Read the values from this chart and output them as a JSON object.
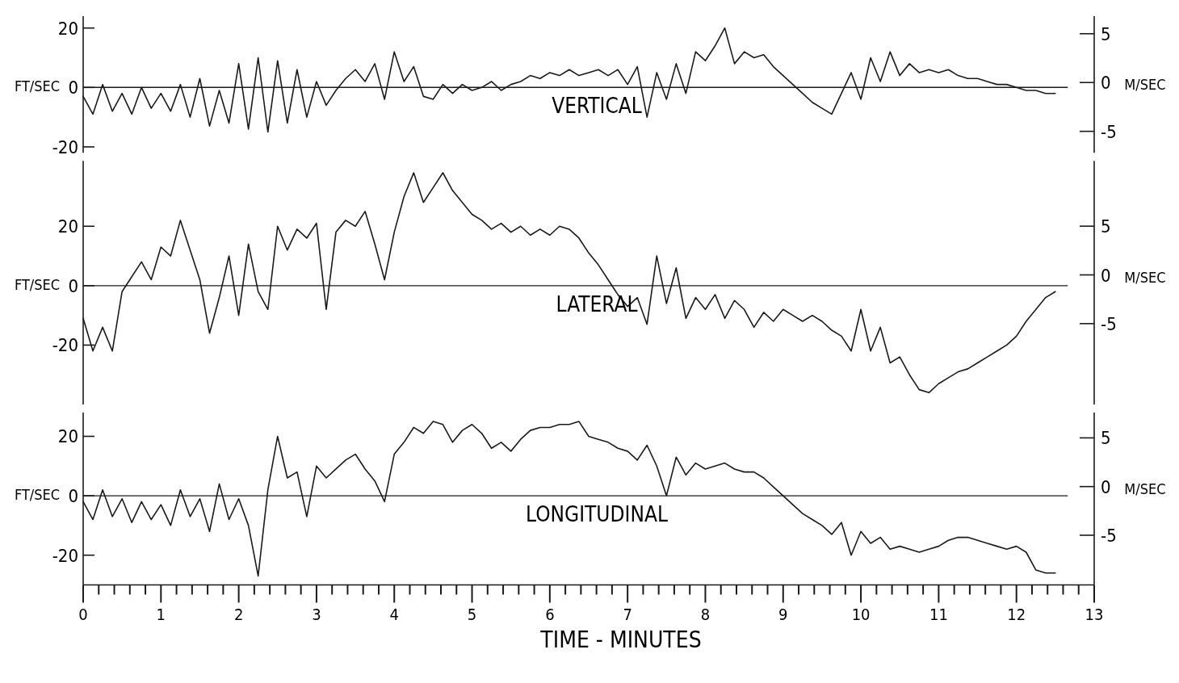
{
  "chart_data": [
    {
      "type": "line",
      "title": "VERTICAL",
      "ylabel": "FT/SEC",
      "y2label": "M/SEC",
      "tick_labels": "y",
      "xlim": [
        0,
        13
      ],
      "ylim": [
        -22,
        24
      ],
      "yticks": [
        -20,
        0,
        20
      ],
      "y2lim": [
        -7.2,
        6.8
      ],
      "y2ticks": [
        -5,
        0,
        5
      ],
      "ref_lines": [
        {
          "axis": "y",
          "value": 0,
          "color": "#1a1a1a"
        }
      ],
      "x": [
        0,
        0.125,
        0.25,
        0.375,
        0.5,
        0.625,
        0.75,
        0.875,
        1,
        1.125,
        1.25,
        1.375,
        1.5,
        1.625,
        1.75,
        1.875,
        2,
        2.125,
        2.25,
        2.375,
        2.5,
        2.625,
        2.75,
        2.875,
        3,
        3.125,
        3.25,
        3.375,
        3.5,
        3.625,
        3.75,
        3.875,
        4,
        4.125,
        4.25,
        4.375,
        4.5,
        4.625,
        4.75,
        4.875,
        5,
        5.125,
        5.25,
        5.375,
        5.5,
        5.625,
        5.75,
        5.875,
        6,
        6.125,
        6.25,
        6.375,
        6.5,
        6.625,
        6.75,
        6.875,
        7,
        7.125,
        7.25,
        7.375,
        7.5,
        7.625,
        7.75,
        7.875,
        8,
        8.125,
        8.25,
        8.375,
        8.5,
        8.625,
        8.75,
        8.875,
        9,
        9.125,
        9.25,
        9.375,
        9.5,
        9.625,
        9.75,
        9.875,
        10,
        10.125,
        10.25,
        10.375,
        10.5,
        10.625,
        10.75,
        10.875,
        11,
        11.125,
        11.25,
        11.375,
        11.5,
        11.625,
        11.75,
        11.875,
        12,
        12.125,
        12.25,
        12.375,
        12.5
      ],
      "series": [
        {
          "color": "#1a1a1a",
          "values": [
            -3,
            -9,
            1,
            -8,
            -2,
            -9,
            0,
            -7,
            -2,
            -8,
            1,
            -10,
            3,
            -13,
            -1,
            -12,
            8,
            -14,
            10,
            -15,
            9,
            -12,
            6,
            -10,
            2,
            -6,
            -1,
            3,
            6,
            2,
            8,
            -4,
            12,
            2,
            7,
            -3,
            -4,
            1,
            -2,
            1,
            -1,
            0,
            2,
            -1,
            1,
            2,
            4,
            3,
            5,
            4,
            6,
            4,
            5,
            6,
            4,
            6,
            1,
            7,
            -10,
            5,
            -4,
            8,
            -2,
            12,
            9,
            14,
            20,
            8,
            12,
            10,
            11,
            7,
            4,
            1,
            -2,
            -5,
            -7,
            -9,
            -2,
            5,
            -4,
            10,
            2,
            12,
            4,
            8,
            5,
            6,
            5,
            6,
            4,
            3,
            3,
            2,
            1,
            1,
            0,
            -1,
            -1,
            -2,
            -2
          ]
        }
      ]
    },
    {
      "type": "line",
      "title": "LATERAL",
      "ylabel": "FT/SEC",
      "y2label": "M/SEC",
      "tick_labels": "y",
      "xlim": [
        0,
        13
      ],
      "ylim": [
        -40,
        42
      ],
      "yticks": [
        -20,
        0,
        20
      ],
      "y2lim": [
        -13.3,
        11.7
      ],
      "y2ticks": [
        -5,
        0,
        5
      ],
      "ref_lines": [
        {
          "axis": "y",
          "value": 0,
          "color": "#1a1a1a"
        }
      ],
      "x": [
        0,
        0.125,
        0.25,
        0.375,
        0.5,
        0.625,
        0.75,
        0.875,
        1,
        1.125,
        1.25,
        1.375,
        1.5,
        1.625,
        1.75,
        1.875,
        2,
        2.125,
        2.25,
        2.375,
        2.5,
        2.625,
        2.75,
        2.875,
        3,
        3.125,
        3.25,
        3.375,
        3.5,
        3.625,
        3.75,
        3.875,
        4,
        4.125,
        4.25,
        4.375,
        4.5,
        4.625,
        4.75,
        4.875,
        5,
        5.125,
        5.25,
        5.375,
        5.5,
        5.625,
        5.75,
        5.875,
        6,
        6.125,
        6.25,
        6.375,
        6.5,
        6.625,
        6.75,
        6.875,
        7,
        7.125,
        7.25,
        7.375,
        7.5,
        7.625,
        7.75,
        7.875,
        8,
        8.125,
        8.25,
        8.375,
        8.5,
        8.625,
        8.75,
        8.875,
        9,
        9.125,
        9.25,
        9.375,
        9.5,
        9.625,
        9.75,
        9.875,
        10,
        10.125,
        10.25,
        10.375,
        10.5,
        10.625,
        10.75,
        10.875,
        11,
        11.125,
        11.25,
        11.375,
        11.5,
        11.625,
        11.75,
        11.875,
        12,
        12.125,
        12.25,
        12.375,
        12.5
      ],
      "series": [
        {
          "color": "#1a1a1a",
          "values": [
            -11,
            -22,
            -14,
            -22,
            -2,
            3,
            8,
            2,
            13,
            10,
            22,
            12,
            2,
            -16,
            -4,
            10,
            -10,
            14,
            -2,
            -8,
            20,
            12,
            19,
            16,
            21,
            -8,
            18,
            22,
            20,
            25,
            14,
            2,
            18,
            30,
            38,
            28,
            33,
            38,
            32,
            28,
            24,
            22,
            19,
            21,
            18,
            20,
            17,
            19,
            17,
            20,
            19,
            16,
            11,
            7,
            2,
            -3,
            -7,
            -4,
            -13,
            10,
            -6,
            6,
            -11,
            -4,
            -8,
            -3,
            -11,
            -5,
            -8,
            -14,
            -9,
            -12,
            -8,
            -10,
            -12,
            -10,
            -12,
            -15,
            -17,
            -22,
            -8,
            -22,
            -14,
            -26,
            -24,
            -30,
            -35,
            -36,
            -33,
            -31,
            -29,
            -28,
            -26,
            -24,
            -22,
            -20,
            -17,
            -12,
            -8,
            -4,
            -2
          ]
        }
      ]
    },
    {
      "type": "line",
      "title": "LONGITUDINAL",
      "ylabel": "FT/SEC",
      "y2label": "M/SEC",
      "xlabel": "TIME - MINUTES",
      "xlim": [
        0,
        13
      ],
      "ylim": [
        -30,
        28
      ],
      "yticks": [
        -20,
        0,
        20
      ],
      "y2lim": [
        -10.1,
        7.6
      ],
      "y2ticks": [
        -5,
        0,
        5
      ],
      "xticks": [
        0,
        {
          "value": 0.2,
          "label": null
        },
        {
          "value": 0.4,
          "label": null
        },
        {
          "value": 0.6,
          "label": null
        },
        {
          "value": 0.8,
          "label": null
        },
        1,
        {
          "value": 1.2,
          "label": null
        },
        {
          "value": 1.4,
          "label": null
        },
        {
          "value": 1.6,
          "label": null
        },
        {
          "value": 1.8,
          "label": null
        },
        2,
        {
          "value": 2.2,
          "label": null
        },
        {
          "value": 2.4,
          "label": null
        },
        {
          "value": 2.6,
          "label": null
        },
        {
          "value": 2.8,
          "label": null
        },
        3,
        {
          "value": 3.2,
          "label": null
        },
        {
          "value": 3.4,
          "label": null
        },
        {
          "value": 3.6,
          "label": null
        },
        {
          "value": 3.8,
          "label": null
        },
        4,
        {
          "value": 4.2,
          "label": null
        },
        {
          "value": 4.4,
          "label": null
        },
        {
          "value": 4.6,
          "label": null
        },
        {
          "value": 4.8,
          "label": null
        },
        5,
        {
          "value": 5.2,
          "label": null
        },
        {
          "value": 5.4,
          "label": null
        },
        {
          "value": 5.6,
          "label": null
        },
        {
          "value": 5.8,
          "label": null
        },
        6,
        {
          "value": 6.2,
          "label": null
        },
        {
          "value": 6.4,
          "label": null
        },
        {
          "value": 6.6,
          "label": null
        },
        {
          "value": 6.8,
          "label": null
        },
        7,
        {
          "value": 7.2,
          "label": null
        },
        {
          "value": 7.4,
          "label": null
        },
        {
          "value": 7.6,
          "label": null
        },
        {
          "value": 7.8,
          "label": null
        },
        8,
        {
          "value": 8.2,
          "label": null
        },
        {
          "value": 8.4,
          "label": null
        },
        {
          "value": 8.6,
          "label": null
        },
        {
          "value": 8.8,
          "label": null
        },
        9,
        {
          "value": 9.2,
          "label": null
        },
        {
          "value": 9.4,
          "label": null
        },
        {
          "value": 9.6,
          "label": null
        },
        {
          "value": 9.8,
          "label": null
        },
        10,
        {
          "value": 10.2,
          "label": null
        },
        {
          "value": 10.4,
          "label": null
        },
        {
          "value": 10.6,
          "label": null
        },
        {
          "value": 10.8,
          "label": null
        },
        11,
        {
          "value": 11.2,
          "label": null
        },
        {
          "value": 11.4,
          "label": null
        },
        {
          "value": 11.6,
          "label": null
        },
        {
          "value": 11.8,
          "label": null
        },
        12,
        {
          "value": 12.2,
          "label": null
        },
        {
          "value": 12.4,
          "label": null
        },
        {
          "value": 12.6,
          "label": null
        },
        {
          "value": 12.8,
          "label": null
        },
        13
      ],
      "ref_lines": [
        {
          "axis": "y",
          "value": 0,
          "color": "#1a1a1a"
        }
      ],
      "x": [
        0,
        0.125,
        0.25,
        0.375,
        0.5,
        0.625,
        0.75,
        0.875,
        1,
        1.125,
        1.25,
        1.375,
        1.5,
        1.625,
        1.75,
        1.875,
        2,
        2.125,
        2.25,
        2.375,
        2.5,
        2.625,
        2.75,
        2.875,
        3,
        3.125,
        3.25,
        3.375,
        3.5,
        3.625,
        3.75,
        3.875,
        4,
        4.125,
        4.25,
        4.375,
        4.5,
        4.625,
        4.75,
        4.875,
        5,
        5.125,
        5.25,
        5.375,
        5.5,
        5.625,
        5.75,
        5.875,
        6,
        6.125,
        6.25,
        6.375,
        6.5,
        6.625,
        6.75,
        6.875,
        7,
        7.125,
        7.25,
        7.375,
        7.5,
        7.625,
        7.75,
        7.875,
        8,
        8.125,
        8.25,
        8.375,
        8.5,
        8.625,
        8.75,
        8.875,
        9,
        9.125,
        9.25,
        9.375,
        9.5,
        9.625,
        9.75,
        9.875,
        10,
        10.125,
        10.25,
        10.375,
        10.5,
        10.625,
        10.75,
        10.875,
        11,
        11.125,
        11.25,
        11.375,
        11.5,
        11.625,
        11.75,
        11.875,
        12,
        12.125,
        12.25,
        12.375,
        12.5
      ],
      "series": [
        {
          "color": "#1a1a1a",
          "values": [
            -2,
            -8,
            2,
            -7,
            -1,
            -9,
            -2,
            -8,
            -3,
            -10,
            2,
            -7,
            -1,
            -12,
            4,
            -8,
            -1,
            -10,
            -27,
            2,
            20,
            6,
            8,
            -7,
            10,
            6,
            9,
            12,
            14,
            9,
            5,
            -2,
            14,
            18,
            23,
            21,
            25,
            24,
            18,
            22,
            24,
            21,
            16,
            18,
            15,
            19,
            22,
            23,
            23,
            24,
            24,
            25,
            20,
            19,
            18,
            16,
            15,
            12,
            17,
            10,
            0,
            13,
            7,
            11,
            9,
            10,
            11,
            9,
            8,
            8,
            6,
            3,
            0,
            -3,
            -6,
            -8,
            -10,
            -13,
            -9,
            -20,
            -12,
            -16,
            -14,
            -18,
            -17,
            -18,
            -19,
            -18,
            -17,
            -15,
            -14,
            -14,
            -15,
            -16,
            -17,
            -18,
            -17,
            -19,
            -25,
            -26,
            -26
          ]
        }
      ]
    }
  ]
}
